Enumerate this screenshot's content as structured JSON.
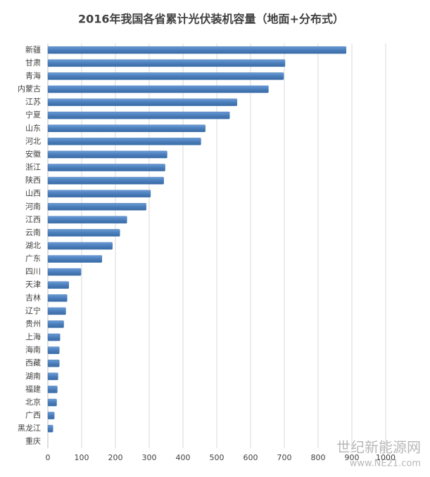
{
  "chart_data": {
    "type": "bar",
    "orientation": "horizontal",
    "title": "2016年我国各省累计光伏装机容量（地面+分布式）",
    "categories": [
      "新疆",
      "甘肃",
      "青海",
      "内蒙古",
      "江苏",
      "宁夏",
      "山东",
      "河北",
      "安徽",
      "浙江",
      "陕西",
      "山西",
      "河南",
      "江西",
      "云南",
      "湖北",
      "广东",
      "四川",
      "天津",
      "吉林",
      "辽宁",
      "贵州",
      "上海",
      "海南",
      "西藏",
      "湖南",
      "福建",
      "北京",
      "广西",
      "黑龙江",
      "重庆"
    ],
    "values": [
      883,
      702,
      698,
      653,
      560,
      538,
      466,
      453,
      353,
      347,
      343,
      304,
      291,
      234,
      213,
      191,
      160,
      98,
      62,
      57,
      53,
      47,
      36,
      34,
      34,
      30,
      28,
      26,
      19,
      15,
      0
    ],
    "color": "#4a7ebb",
    "xlim": [
      0,
      1000
    ],
    "xticks": [
      0,
      100,
      200,
      300,
      400,
      500,
      600,
      700,
      800,
      900,
      1000
    ],
    "grid": true,
    "watermark": [
      "世纪新能源网",
      "www.NE21.com"
    ]
  }
}
